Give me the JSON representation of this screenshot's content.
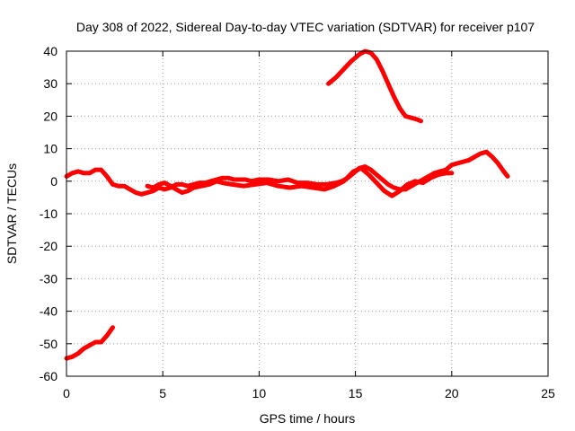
{
  "chart_data": {
    "type": "line",
    "title": "Day 308 of 2022, Sidereal Day-to-day VTEC variation (SDTVAR) for receiver p107",
    "xlabel": "GPS time / hours",
    "ylabel": "SDTVAR / TECUs",
    "xlim": [
      0,
      25
    ],
    "ylim": [
      -60,
      40
    ],
    "xticks": [
      0,
      5,
      10,
      15,
      20,
      25
    ],
    "yticks": [
      -60,
      -50,
      -40,
      -30,
      -20,
      -10,
      0,
      10,
      20,
      30,
      40
    ],
    "grid": true,
    "series_color": "#ff0000",
    "series": [
      {
        "name": "main-band",
        "points": [
          [
            0,
            1.5
          ],
          [
            0.3,
            2.5
          ],
          [
            0.6,
            3
          ],
          [
            0.9,
            2.5
          ],
          [
            1.2,
            2.5
          ],
          [
            1.5,
            3.5
          ],
          [
            1.8,
            3.5
          ],
          [
            2.1,
            1.5
          ],
          [
            2.4,
            -1
          ],
          [
            2.7,
            -1.5
          ],
          [
            3,
            -1.5
          ],
          [
            3.3,
            -2.5
          ],
          [
            3.6,
            -3.5
          ],
          [
            3.9,
            -4
          ],
          [
            4.2,
            -3.5
          ],
          [
            4.5,
            -3
          ],
          [
            4.8,
            -2
          ],
          [
            5.1,
            -2.5
          ],
          [
            5.4,
            -2
          ],
          [
            5.7,
            -1
          ],
          [
            6,
            -1
          ],
          [
            6.3,
            -1.5
          ],
          [
            6.6,
            -1
          ],
          [
            6.9,
            -0.5
          ],
          [
            7.2,
            -0.5
          ],
          [
            7.5,
            0
          ],
          [
            7.8,
            0.5
          ],
          [
            8.1,
            1
          ],
          [
            8.4,
            1
          ],
          [
            8.7,
            0.5
          ],
          [
            9,
            0.5
          ],
          [
            9.3,
            0.5
          ],
          [
            9.6,
            0
          ],
          [
            10,
            0.5
          ],
          [
            10.5,
            0.5
          ],
          [
            11,
            0
          ],
          [
            11.5,
            0.5
          ],
          [
            12,
            -0.5
          ],
          [
            12.5,
            -0.5
          ],
          [
            13,
            -1
          ],
          [
            13.5,
            -1
          ],
          [
            14,
            -0.5
          ],
          [
            14.3,
            0
          ],
          [
            14.6,
            1
          ],
          [
            14.9,
            2.5
          ],
          [
            15.2,
            4
          ],
          [
            15.5,
            4.5
          ],
          [
            15.8,
            3.5
          ],
          [
            16.1,
            2
          ],
          [
            16.4,
            0.5
          ],
          [
            16.7,
            -1
          ],
          [
            17,
            -2
          ],
          [
            17.3,
            -2.5
          ],
          [
            17.6,
            -2.5
          ],
          [
            17.9,
            -1.5
          ],
          [
            18.2,
            -0.5
          ],
          [
            18.5,
            0.5
          ],
          [
            18.8,
            1.5
          ],
          [
            19.1,
            2.5
          ],
          [
            19.4,
            3
          ],
          [
            19.7,
            3.5
          ],
          [
            20,
            5
          ],
          [
            20.3,
            5.5
          ],
          [
            20.6,
            6
          ],
          [
            20.9,
            6.5
          ],
          [
            21.2,
            7.5
          ],
          [
            21.5,
            8.5
          ],
          [
            21.8,
            9
          ],
          [
            22.1,
            7.5
          ],
          [
            22.4,
            5.5
          ],
          [
            22.7,
            3
          ],
          [
            22.9,
            1.5
          ]
        ]
      },
      {
        "name": "lower-band",
        "points": [
          [
            4.2,
            -1.5
          ],
          [
            4.5,
            -2
          ],
          [
            4.8,
            -1
          ],
          [
            5.1,
            -0.5
          ],
          [
            5.4,
            -1.5
          ],
          [
            5.7,
            -2.5
          ],
          [
            6,
            -3.5
          ],
          [
            6.3,
            -3
          ],
          [
            6.6,
            -2
          ],
          [
            7,
            -1.5
          ],
          [
            7.4,
            -1
          ],
          [
            7.8,
            0
          ],
          [
            8.1,
            -0.5
          ],
          [
            8.6,
            -1
          ],
          [
            9.2,
            -1.5
          ],
          [
            9.8,
            -1
          ],
          [
            10.4,
            -0.5
          ],
          [
            11,
            -1.5
          ],
          [
            11.6,
            -2
          ],
          [
            12.2,
            -1.5
          ],
          [
            12.8,
            -2
          ],
          [
            13.4,
            -2.5
          ],
          [
            13.9,
            -1.5
          ],
          [
            14.4,
            0
          ],
          [
            14.9,
            3
          ],
          [
            15.3,
            4
          ],
          [
            15.7,
            2
          ],
          [
            16.1,
            -0.5
          ],
          [
            16.5,
            -3
          ],
          [
            16.9,
            -4.5
          ],
          [
            17.3,
            -3
          ],
          [
            17.7,
            -1
          ],
          [
            18.1,
            0
          ],
          [
            18.5,
            -0.5
          ],
          [
            18.9,
            1
          ],
          [
            19.3,
            2
          ],
          [
            19.7,
            2.5
          ],
          [
            20,
            2.5
          ]
        ]
      },
      {
        "name": "upper-arc",
        "points": [
          [
            13.6,
            30
          ],
          [
            14,
            32
          ],
          [
            14.4,
            34.5
          ],
          [
            14.8,
            37
          ],
          [
            15.2,
            39
          ],
          [
            15.5,
            40
          ],
          [
            15.8,
            39.5
          ],
          [
            16.1,
            37.5
          ],
          [
            16.4,
            34
          ],
          [
            16.7,
            30
          ],
          [
            17,
            26
          ],
          [
            17.3,
            22.5
          ],
          [
            17.6,
            20
          ],
          [
            17.9,
            19.5
          ],
          [
            18.2,
            19
          ],
          [
            18.4,
            18.5
          ]
        ]
      },
      {
        "name": "lower-segment",
        "points": [
          [
            0,
            -54.5
          ],
          [
            0.3,
            -54
          ],
          [
            0.6,
            -53
          ],
          [
            0.9,
            -51.5
          ],
          [
            1.2,
            -50.5
          ],
          [
            1.5,
            -49.5
          ],
          [
            1.8,
            -49.5
          ],
          [
            2.1,
            -47.5
          ],
          [
            2.4,
            -45
          ]
        ]
      }
    ]
  }
}
